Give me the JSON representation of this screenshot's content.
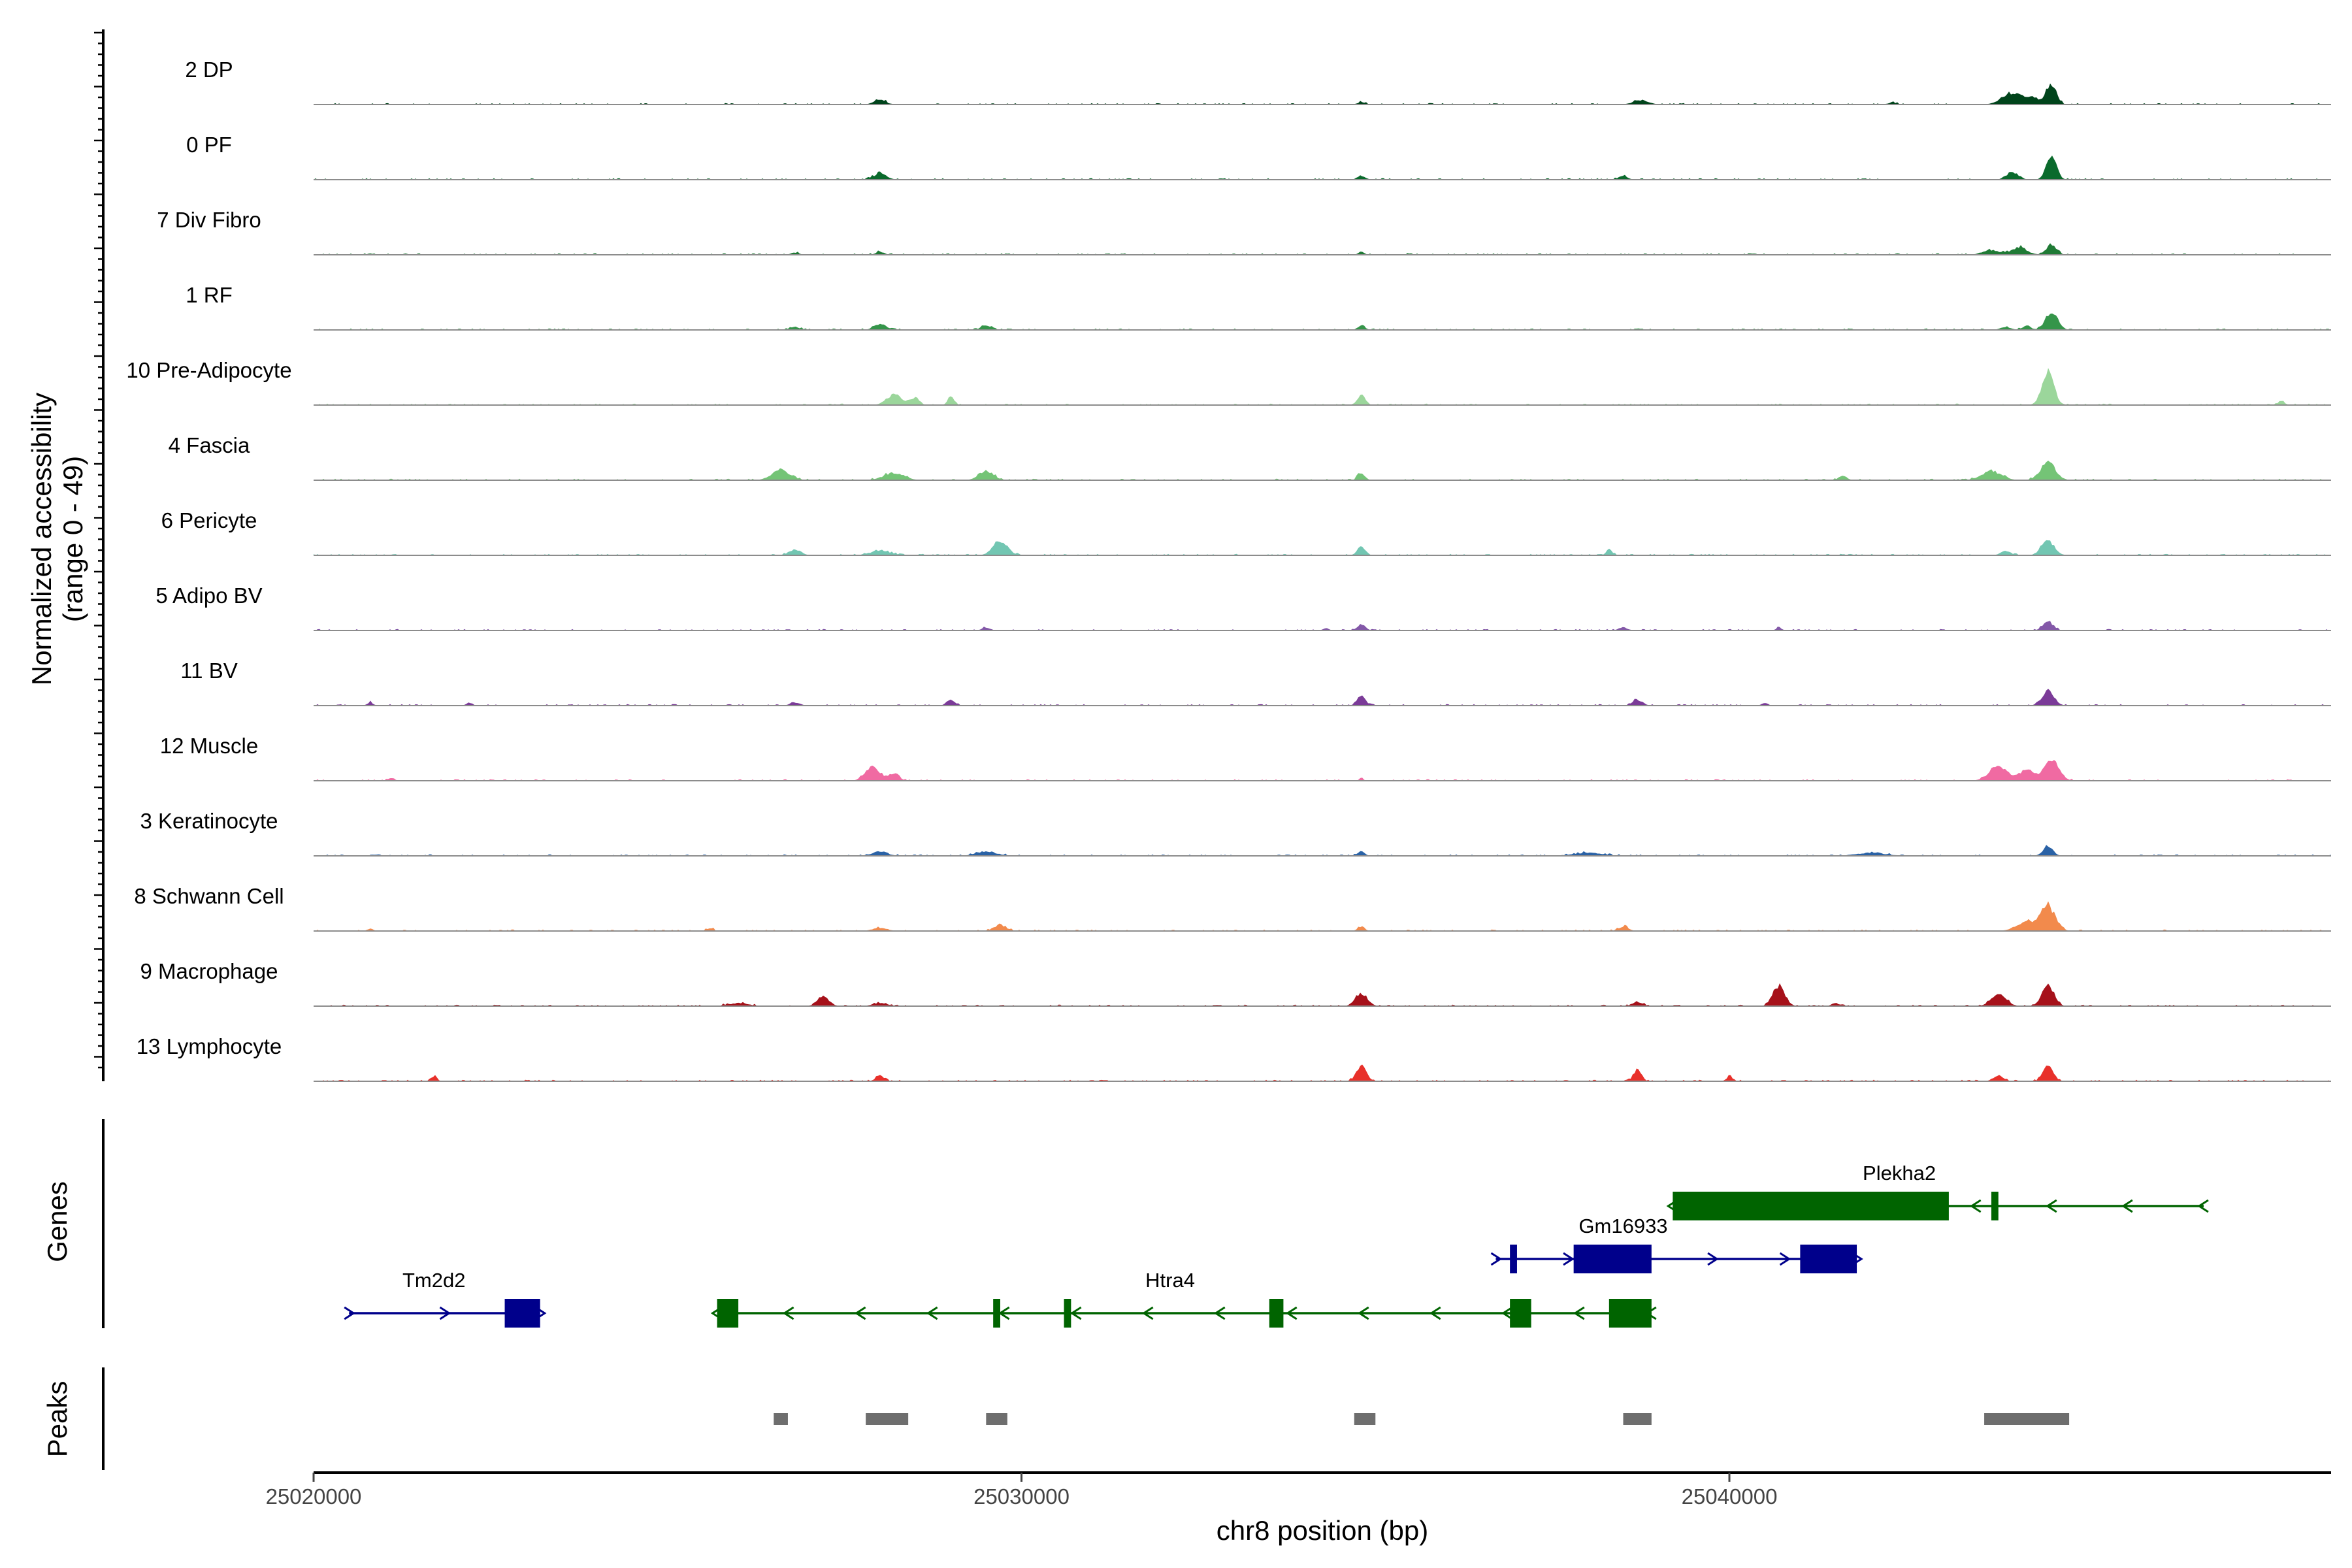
{
  "chart_data": {
    "type": "genome-browser coverage",
    "y_axis_title": [
      "Normalized accessibility",
      "(range 0 - 49)"
    ],
    "y_range": [
      0,
      49
    ],
    "x_axis_title": "chr8 position (bp)",
    "x_range": [
      25020000,
      25048500
    ],
    "x_ticks": [
      25020000,
      25030000,
      25040000
    ],
    "x_tick_labels": [
      "25020000",
      "25030000",
      "25040000"
    ],
    "panel_titles": {
      "genes": "Genes",
      "peaks": "Peaks"
    },
    "tracks": [
      {
        "name": "2 DP",
        "color": "#00441b",
        "peaks": [
          [
            25028000,
            120,
            3
          ],
          [
            25034800,
            80,
            1.5
          ],
          [
            25038750,
            150,
            3
          ],
          [
            25044000,
            200,
            8
          ],
          [
            25044300,
            130,
            4
          ],
          [
            25044550,
            100,
            14
          ],
          [
            25042300,
            100,
            1
          ]
        ]
      },
      {
        "name": "0 PF",
        "color": "#0a6a2c",
        "peaks": [
          [
            25028000,
            130,
            4
          ],
          [
            25034800,
            80,
            2.5
          ],
          [
            25038500,
            90,
            2.5
          ],
          [
            25044000,
            120,
            5
          ],
          [
            25044550,
            100,
            16
          ]
        ]
      },
      {
        "name": "7 Div Fibro",
        "color": "#1f7a35",
        "peaks": [
          [
            25020800,
            50,
            1
          ],
          [
            25021300,
            40,
            1
          ],
          [
            25026800,
            80,
            1.5
          ],
          [
            25028000,
            80,
            2
          ],
          [
            25034800,
            60,
            2
          ],
          [
            25035500,
            40,
            1
          ],
          [
            25043700,
            180,
            3
          ],
          [
            25044100,
            150,
            5
          ],
          [
            25044550,
            100,
            7
          ]
        ]
      },
      {
        "name": "1 RF",
        "color": "#35954a",
        "peaks": [
          [
            25026800,
            100,
            2
          ],
          [
            25028000,
            120,
            4
          ],
          [
            25029500,
            100,
            3
          ],
          [
            25034800,
            70,
            3
          ],
          [
            25043900,
            100,
            2
          ],
          [
            25044200,
            80,
            3
          ],
          [
            25044550,
            120,
            12
          ]
        ]
      },
      {
        "name": "10 Pre-Adipocyte",
        "color": "#9bd69b",
        "peaks": [
          [
            25028200,
            150,
            7
          ],
          [
            25028500,
            80,
            5
          ],
          [
            25029000,
            60,
            6
          ],
          [
            25034800,
            80,
            7
          ],
          [
            25044500,
            120,
            22
          ],
          [
            25047800,
            60,
            3
          ]
        ]
      },
      {
        "name": "4 Fascia",
        "color": "#74c476",
        "peaks": [
          [
            25026600,
            180,
            7
          ],
          [
            25028200,
            200,
            5
          ],
          [
            25029500,
            150,
            6
          ],
          [
            25034800,
            70,
            5
          ],
          [
            25043700,
            200,
            6
          ],
          [
            25044500,
            150,
            12
          ],
          [
            25041600,
            80,
            3
          ]
        ]
      },
      {
        "name": "6 Pericyte",
        "color": "#72c6b2",
        "peaks": [
          [
            25026800,
            120,
            4
          ],
          [
            25028000,
            200,
            3
          ],
          [
            25029700,
            150,
            9
          ],
          [
            25034800,
            80,
            6
          ],
          [
            25038300,
            60,
            4
          ],
          [
            25044500,
            130,
            10
          ],
          [
            25043900,
            100,
            3
          ]
        ]
      },
      {
        "name": "5 Adipo BV",
        "color": "#8358a8",
        "peaks": [
          [
            25029500,
            80,
            2
          ],
          [
            25034800,
            80,
            4
          ],
          [
            25034300,
            60,
            1.5
          ],
          [
            25038500,
            90,
            2
          ],
          [
            25040700,
            60,
            1.5
          ],
          [
            25044500,
            100,
            6
          ]
        ]
      },
      {
        "name": "11 BV",
        "color": "#7b3b98",
        "peaks": [
          [
            25020800,
            60,
            2
          ],
          [
            25022200,
            60,
            2
          ],
          [
            25026800,
            100,
            2
          ],
          [
            25029000,
            80,
            4
          ],
          [
            25034800,
            80,
            7
          ],
          [
            25038700,
            100,
            4
          ],
          [
            25044500,
            120,
            10
          ],
          [
            25040500,
            60,
            2
          ]
        ]
      },
      {
        "name": "12 Muscle",
        "color": "#f06aa2",
        "peaks": [
          [
            25021100,
            60,
            2
          ],
          [
            25027900,
            150,
            9
          ],
          [
            25028200,
            100,
            5
          ],
          [
            25034800,
            40,
            2
          ],
          [
            25043800,
            180,
            10
          ],
          [
            25044200,
            150,
            7
          ],
          [
            25044550,
            150,
            14
          ]
        ]
      },
      {
        "name": "3 Keratinocyte",
        "color": "#2a62a6",
        "peaks": [
          [
            25028000,
            150,
            3
          ],
          [
            25029500,
            200,
            3
          ],
          [
            25034800,
            70,
            3
          ],
          [
            25038000,
            300,
            2
          ],
          [
            25042000,
            300,
            2
          ],
          [
            25044500,
            100,
            6
          ]
        ]
      },
      {
        "name": "8 Schwann Cell",
        "color": "#f28a4c",
        "peaks": [
          [
            25020800,
            60,
            1.5
          ],
          [
            25025600,
            60,
            2
          ],
          [
            25028000,
            150,
            2
          ],
          [
            25029700,
            120,
            4
          ],
          [
            25034800,
            70,
            3
          ],
          [
            25038500,
            100,
            3
          ],
          [
            25044200,
            200,
            6
          ],
          [
            25044500,
            150,
            16
          ]
        ]
      },
      {
        "name": "9 Macrophage",
        "color": "#a6111a",
        "peaks": [
          [
            25026000,
            200,
            2
          ],
          [
            25027200,
            120,
            6
          ],
          [
            25028000,
            150,
            2
          ],
          [
            25034800,
            120,
            9
          ],
          [
            25038700,
            100,
            3
          ],
          [
            25040700,
            120,
            14
          ],
          [
            25043800,
            150,
            8
          ],
          [
            25044500,
            120,
            14
          ],
          [
            25041500,
            80,
            2
          ]
        ]
      },
      {
        "name": "13 Lymphocyte",
        "color": "#e8302a",
        "peaks": [
          [
            25021700,
            60,
            3
          ],
          [
            25028000,
            80,
            4
          ],
          [
            25034800,
            100,
            10
          ],
          [
            25038700,
            80,
            8
          ],
          [
            25040000,
            60,
            3
          ],
          [
            25044500,
            100,
            10
          ],
          [
            25043800,
            100,
            4
          ]
        ]
      }
    ],
    "genes": [
      {
        "name": "Tm2d2",
        "strand": "+",
        "color": "#00008b",
        "start": 25020500,
        "end": 25023200,
        "exons": [
          [
            25022700,
            25023200
          ]
        ],
        "label_at": 25021700
      },
      {
        "name": "Htra4",
        "strand": "-",
        "color": "#006400",
        "start": 25025700,
        "end": 25038900,
        "exons": [
          [
            25025700,
            25026000
          ],
          [
            25029600,
            25029700
          ],
          [
            25030600,
            25030700
          ],
          [
            25033500,
            25033700
          ],
          [
            25036900,
            25037200
          ],
          [
            25038300,
            25038900
          ]
        ],
        "label_at": 25032100
      },
      {
        "name": "Gm16933",
        "strand": "+",
        "color": "#00008b",
        "start": 25036700,
        "end": 25041800,
        "exons": [
          [
            25036900,
            25037000
          ],
          [
            25037800,
            25038900
          ],
          [
            25041000,
            25041800
          ]
        ],
        "label_at": 25038500
      },
      {
        "name": "Plekha2",
        "strand": "-",
        "color": "#006400",
        "start": 25039200,
        "end": 25046700,
        "exons": [
          [
            25039200,
            25043100
          ],
          [
            25043700,
            25043800
          ]
        ],
        "label_at": 25042400
      }
    ],
    "peak_regions": [
      [
        25026500,
        25026700
      ],
      [
        25027800,
        25028400
      ],
      [
        25029500,
        25029800
      ],
      [
        25034700,
        25035000
      ],
      [
        25038500,
        25038900
      ],
      [
        25043600,
        25044800
      ]
    ]
  }
}
